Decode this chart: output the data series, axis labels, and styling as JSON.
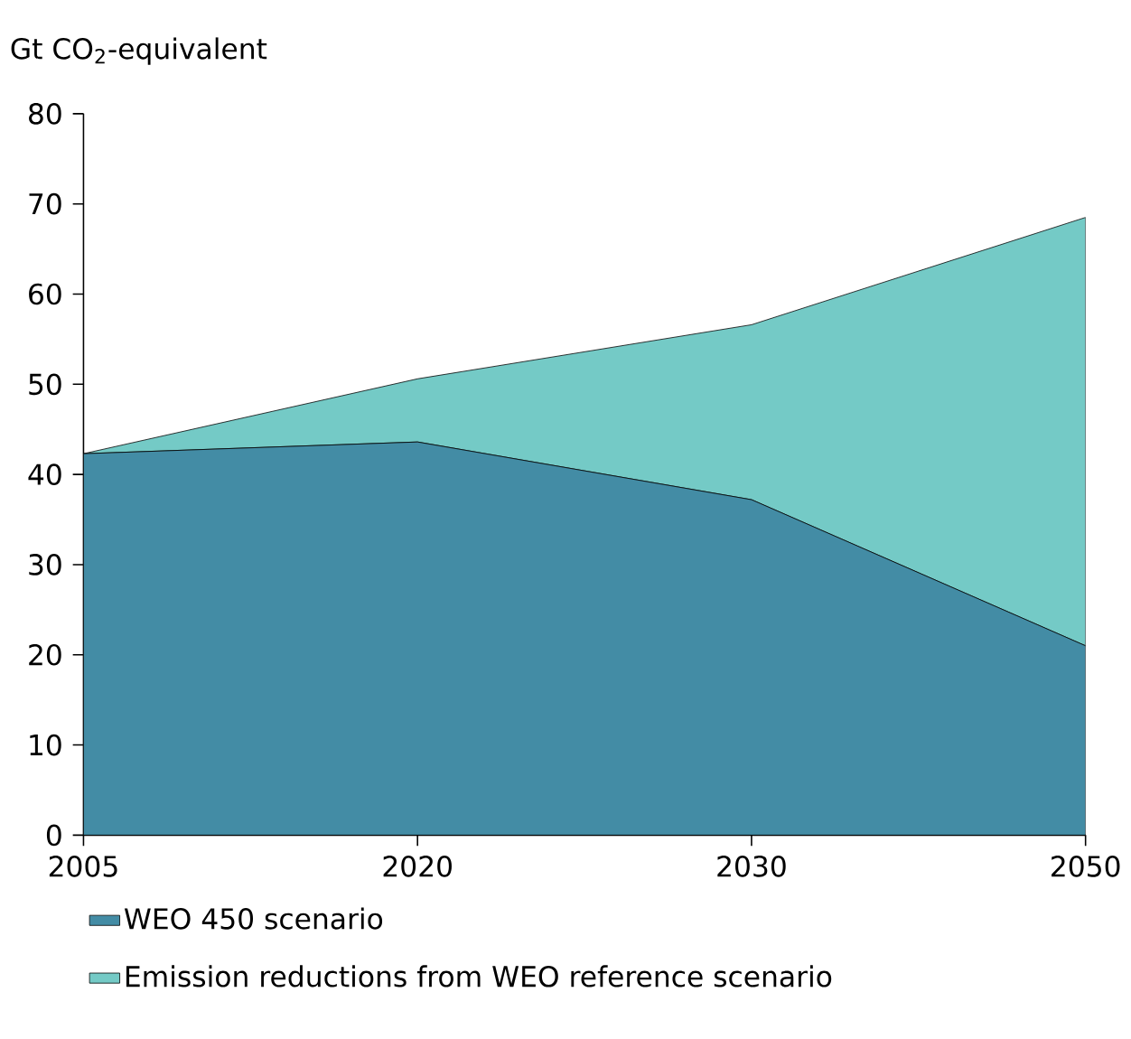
{
  "chart_data": {
    "type": "area",
    "ylabel": "Gt CO$_{2}$-equivalent",
    "categories": [
      "2005",
      "2020",
      "2030",
      "2050"
    ],
    "stacked": true,
    "ylim": [
      0,
      80
    ],
    "yticks": [
      0,
      10,
      20,
      30,
      40,
      50,
      60,
      70,
      80
    ],
    "legend": "bottom",
    "series": [
      {
        "name": "WEO 450 scenario",
        "color": "#438ca5",
        "values": [
          42.3,
          43.6,
          37.2,
          21.0
        ]
      },
      {
        "name": "Emission reductions from WEO reference scenario",
        "color": "#74cac6",
        "values": [
          0,
          7.0,
          19.4,
          47.5
        ]
      }
    ]
  }
}
